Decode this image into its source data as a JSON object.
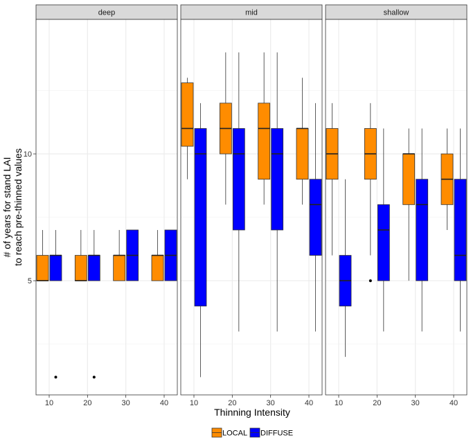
{
  "chart_data": {
    "type": "box",
    "title": "",
    "xlabel": "Thinning Intensity",
    "ylabel_lines": [
      "# of years for stand LAI",
      "to reach pre-thinned values"
    ],
    "ylim": [
      0.5,
      15.3
    ],
    "yticks": [
      5,
      10
    ],
    "yticks_minor": [
      2.5,
      7.5,
      12.5
    ],
    "categories": [
      "10",
      "20",
      "30",
      "40"
    ],
    "grid": true,
    "legend_position": "bottom",
    "series_colors": {
      "LOCAL": "#FF8C00",
      "DIFFUSE": "#0000FF"
    },
    "series": [
      {
        "name": "LOCAL",
        "color": "#FF8C00"
      },
      {
        "name": "DIFFUSE",
        "color": "#0000FF"
      }
    ],
    "facets": [
      {
        "label": "deep",
        "boxes": [
          {
            "series": "LOCAL",
            "category": "10",
            "min": 5,
            "q1": 5,
            "median": 5,
            "q3": 6,
            "max": 7,
            "outliers": []
          },
          {
            "series": "DIFFUSE",
            "category": "10",
            "min": 5,
            "q1": 5,
            "median": 6,
            "q3": 6,
            "max": 7,
            "outliers": [
              1.2
            ]
          },
          {
            "series": "LOCAL",
            "category": "20",
            "min": 5,
            "q1": 5,
            "median": 5,
            "q3": 6,
            "max": 7,
            "outliers": []
          },
          {
            "series": "DIFFUSE",
            "category": "20",
            "min": 5,
            "q1": 5,
            "median": 6,
            "q3": 6,
            "max": 7,
            "outliers": [
              1.2
            ]
          },
          {
            "series": "LOCAL",
            "category": "30",
            "min": 5,
            "q1": 5,
            "median": 6,
            "q3": 6,
            "max": 7,
            "outliers": []
          },
          {
            "series": "DIFFUSE",
            "category": "30",
            "min": 5,
            "q1": 5,
            "median": 6,
            "q3": 7,
            "max": 7,
            "outliers": []
          },
          {
            "series": "LOCAL",
            "category": "40",
            "min": 5,
            "q1": 5,
            "median": 6,
            "q3": 6,
            "max": 7,
            "outliers": []
          },
          {
            "series": "DIFFUSE",
            "category": "40",
            "min": 5,
            "q1": 5,
            "median": 6,
            "q3": 7,
            "max": 7,
            "outliers": []
          }
        ]
      },
      {
        "label": "mid",
        "boxes": [
          {
            "series": "LOCAL",
            "category": "10",
            "min": 9,
            "q1": 10.3,
            "median": 11,
            "q3": 12.8,
            "max": 13,
            "outliers": []
          },
          {
            "series": "DIFFUSE",
            "category": "10",
            "min": 1.2,
            "q1": 4,
            "median": 10,
            "q3": 11,
            "max": 12,
            "outliers": []
          },
          {
            "series": "LOCAL",
            "category": "20",
            "min": 8,
            "q1": 10,
            "median": 11,
            "q3": 12,
            "max": 14,
            "outliers": []
          },
          {
            "series": "DIFFUSE",
            "category": "20",
            "min": 3,
            "q1": 7,
            "median": 10,
            "q3": 11,
            "max": 14,
            "outliers": []
          },
          {
            "series": "LOCAL",
            "category": "30",
            "min": 8,
            "q1": 9,
            "median": 11,
            "q3": 12,
            "max": 14,
            "outliers": []
          },
          {
            "series": "DIFFUSE",
            "category": "30",
            "min": 3,
            "q1": 7,
            "median": 10,
            "q3": 11,
            "max": 14,
            "outliers": []
          },
          {
            "series": "LOCAL",
            "category": "40",
            "min": 8,
            "q1": 9,
            "median": 11,
            "q3": 11,
            "max": 13,
            "outliers": []
          },
          {
            "series": "DIFFUSE",
            "category": "40",
            "min": 3,
            "q1": 6,
            "median": 8,
            "q3": 9,
            "max": 12,
            "outliers": []
          }
        ]
      },
      {
        "label": "shallow",
        "boxes": [
          {
            "series": "LOCAL",
            "category": "10",
            "min": 6,
            "q1": 9,
            "median": 10,
            "q3": 11,
            "max": 12,
            "outliers": []
          },
          {
            "series": "DIFFUSE",
            "category": "10",
            "min": 2,
            "q1": 4,
            "median": 5,
            "q3": 6,
            "max": 9,
            "outliers": []
          },
          {
            "series": "LOCAL",
            "category": "20",
            "min": 6,
            "q1": 9,
            "median": 10,
            "q3": 11,
            "max": 12,
            "outliers": [
              5
            ]
          },
          {
            "series": "DIFFUSE",
            "category": "20",
            "min": 3,
            "q1": 5,
            "median": 7,
            "q3": 8,
            "max": 11,
            "outliers": []
          },
          {
            "series": "LOCAL",
            "category": "30",
            "min": 5,
            "q1": 8,
            "median": 10,
            "q3": 10,
            "max": 11,
            "outliers": []
          },
          {
            "series": "DIFFUSE",
            "category": "30",
            "min": 3,
            "q1": 5,
            "median": 8,
            "q3": 9,
            "max": 11,
            "outliers": []
          },
          {
            "series": "LOCAL",
            "category": "40",
            "min": 7,
            "q1": 8,
            "median": 9,
            "q3": 10,
            "max": 11,
            "outliers": []
          },
          {
            "series": "DIFFUSE",
            "category": "40",
            "min": 3,
            "q1": 5,
            "median": 6,
            "q3": 9,
            "max": 11,
            "outliers": []
          }
        ]
      }
    ]
  }
}
